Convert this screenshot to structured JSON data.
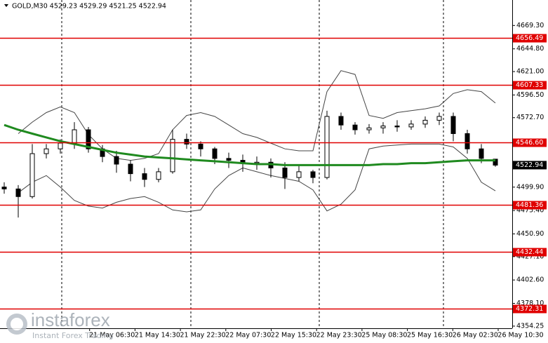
{
  "chart_data": {
    "type": "candlestick",
    "title": "GOLD,M30  4529.23 4529.29 4521.25 4522.94",
    "ylim": [
      4352,
      4696
    ],
    "yticks": [
      {
        "value": 4669.3,
        "label": "4669.30"
      },
      {
        "value": 4644.8,
        "label": "4644.80"
      },
      {
        "value": 4621.0,
        "label": "4621.00"
      },
      {
        "value": 4596.5,
        "label": "4596.50"
      },
      {
        "value": 4572.7,
        "label": "4572.70"
      },
      {
        "value": 4499.9,
        "label": "4499.90"
      },
      {
        "value": 4475.4,
        "label": "4475.40"
      },
      {
        "value": 4450.9,
        "label": "4450.90"
      },
      {
        "value": 4427.1,
        "label": "4427.10"
      },
      {
        "value": 4402.6,
        "label": "4402.60"
      },
      {
        "value": 4378.1,
        "label": "4378.10"
      },
      {
        "value": 4354.25,
        "label": "4354.25"
      }
    ],
    "xtick_labels": [
      "21 May 06:30",
      "21 May 14:30",
      "21 May 22:30",
      "22 May 07:30",
      "22 May 15:30",
      "22 May 23:30",
      "25 May 08:30",
      "25 May 16:30",
      "26 May 02:30",
      "26 May 10:30"
    ],
    "ohlc": [
      [
        4500,
        4505,
        4493,
        4498
      ],
      [
        4498,
        4502,
        4468,
        4490
      ],
      [
        4490,
        4545,
        4488,
        4535
      ],
      [
        4535,
        4545,
        4530,
        4540
      ],
      [
        4540,
        4550,
        4535,
        4546
      ],
      [
        4546,
        4568,
        4540,
        4560
      ],
      [
        4560,
        4563,
        4536,
        4540
      ],
      [
        4540,
        4544,
        4526,
        4532
      ],
      [
        4532,
        4538,
        4515,
        4524
      ],
      [
        4524,
        4528,
        4506,
        4514
      ],
      [
        4514,
        4520,
        4500,
        4508
      ],
      [
        4508,
        4520,
        4505,
        4516
      ],
      [
        4516,
        4560,
        4514,
        4550
      ],
      [
        4550,
        4556,
        4540,
        4545
      ],
      [
        4545,
        4548,
        4532,
        4540
      ],
      [
        4540,
        4542,
        4524,
        4530
      ],
      [
        4530,
        4536,
        4520,
        4528
      ],
      [
        4528,
        4534,
        4516,
        4525
      ],
      [
        4525,
        4532,
        4518,
        4526
      ],
      [
        4526,
        4530,
        4510,
        4520
      ],
      [
        4520,
        4526,
        4498,
        4510
      ],
      [
        4510,
        4524,
        4506,
        4516
      ],
      [
        4516,
        4518,
        4504,
        4510
      ],
      [
        4510,
        4580,
        4508,
        4574
      ],
      [
        4574,
        4578,
        4560,
        4565
      ],
      [
        4565,
        4568,
        4555,
        4560
      ],
      [
        4560,
        4566,
        4556,
        4562
      ],
      [
        4562,
        4568,
        4556,
        4564
      ],
      [
        4564,
        4570,
        4558,
        4563
      ],
      [
        4563,
        4570,
        4560,
        4566
      ],
      [
        4566,
        4574,
        4562,
        4570
      ],
      [
        4570,
        4578,
        4565,
        4574
      ],
      [
        4574,
        4578,
        4548,
        4556
      ],
      [
        4556,
        4560,
        4535,
        4540
      ],
      [
        4540,
        4545,
        4525,
        4530
      ],
      [
        4529.23,
        4529.29,
        4521.25,
        4522.94
      ]
    ],
    "series": [
      {
        "color": "#1f8a1f",
        "width": 3,
        "values": [
          4565,
          4560,
          4556,
          4552,
          4548,
          4545,
          4542,
          4539,
          4536,
          4534,
          4532,
          4531,
          4530,
          4529,
          4528,
          4527,
          4526,
          4525,
          4524,
          4524,
          4523,
          4523,
          4523,
          4523,
          4523,
          4523,
          4523,
          4524,
          4524,
          4525,
          4525,
          4526,
          4527,
          4528,
          4528,
          4528
        ]
      },
      {
        "color": "#444444",
        "width": 1,
        "values": [
          null,
          4556,
          4568,
          4578,
          4584,
          4578,
          4555,
          4540,
          4530,
          4528,
          4530,
          4535,
          4560,
          4575,
          4578,
          4574,
          4565,
          4556,
          4552,
          4546,
          4540,
          4538,
          4538,
          4600,
          4622,
          4618,
          4575,
          4572,
          4578,
          4580,
          4582,
          4585,
          4598,
          4602,
          4600,
          4588
        ]
      },
      {
        "color": "#444444",
        "width": 1,
        "values": [
          null,
          4494,
          4505,
          4512,
          4500,
          4486,
          4480,
          4478,
          4484,
          4488,
          4490,
          4484,
          4476,
          4474,
          4476,
          4498,
          4512,
          4520,
          4516,
          4512,
          4509,
          4506,
          4497,
          4475,
          4482,
          4497,
          4540,
          4543,
          4544,
          4545,
          4545,
          4545,
          4542,
          4530,
          4505,
          4496
        ]
      }
    ],
    "levels": [
      {
        "value": 4656.49,
        "label": "4656.49"
      },
      {
        "value": 4607.33,
        "label": "4607.33"
      },
      {
        "value": 4546.6,
        "label": "4546.60"
      },
      {
        "value": 4481.36,
        "label": "4481.36"
      },
      {
        "value": 4432.44,
        "label": "4432.44"
      },
      {
        "value": 4372.31,
        "label": "4372.31"
      }
    ],
    "level_color": "#e00000",
    "current_price": {
      "value": 4522.94,
      "label": "4522.94"
    },
    "watermark": {
      "brand": "instaforex",
      "tagline": "Instant Forex Trading"
    }
  }
}
